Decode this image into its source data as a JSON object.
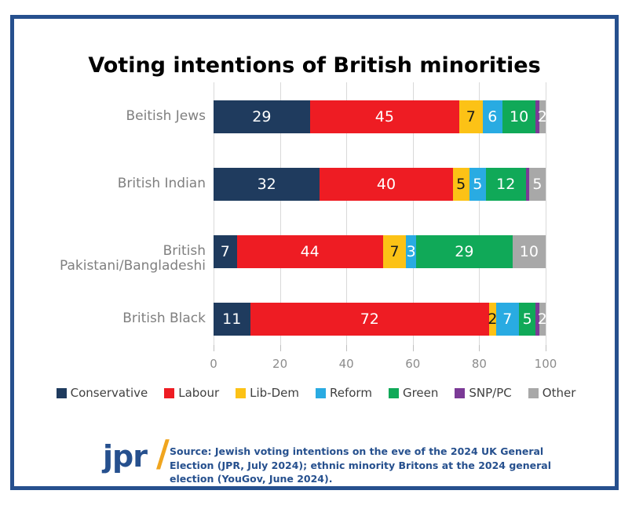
{
  "title": "Voting intentions of British minorities",
  "chart_data": {
    "type": "bar",
    "orientation": "horizontal",
    "stacked": true,
    "title": "Voting intentions of British minorities",
    "categories": [
      "Beitish Jews",
      "British Indian",
      "British Pakistani/Bangladeshi",
      "British Black"
    ],
    "series": [
      {
        "name": "Conservative",
        "color": "#1f3b5e",
        "values": [
          29,
          32,
          7,
          11
        ]
      },
      {
        "name": "Labour",
        "color": "#ee1c23",
        "values": [
          45,
          40,
          44,
          72
        ]
      },
      {
        "name": "Lib-Dem",
        "color": "#fcc216",
        "values": [
          7,
          5,
          7,
          2
        ]
      },
      {
        "name": "Reform",
        "color": "#29abe2",
        "values": [
          6,
          5,
          3,
          7
        ]
      },
      {
        "name": "Green",
        "color": "#10a958",
        "values": [
          10,
          12,
          29,
          5
        ]
      },
      {
        "name": "SNP/PC",
        "color": "#7b3a96",
        "values": [
          1,
          1,
          0,
          1
        ]
      },
      {
        "name": "Other",
        "color": "#a8a8a8",
        "values": [
          2,
          5,
          10,
          2
        ]
      }
    ],
    "xlim": [
      0,
      100
    ],
    "x_ticks": [
      "0",
      "20",
      "40",
      "60",
      "80",
      "100"
    ],
    "grid": "vertical",
    "legend_position": "bottom",
    "value_label_rule": "labels shown for segments >= 2; black text on Lib-Dem yellow, white elsewhere"
  },
  "footer": {
    "logo_text": "jpr",
    "logo_slash": "/",
    "source_text": "Source: Jewish voting intentions on the eve of the 2024 UK General Election (JPR, July 2024); ethnic minority Britons at the 2024 general election (YouGov, June 2024)."
  },
  "colors": {
    "frame_border": "#26508e",
    "title_text": "#000000",
    "category_label": "#7f7f7f",
    "axis_label": "#8c8c8c",
    "gridline": "#d9d9d9",
    "legend_text": "#404040",
    "source_text": "#26508e",
    "logo_blue": "#26508e",
    "logo_gold": "#f0a51f"
  }
}
